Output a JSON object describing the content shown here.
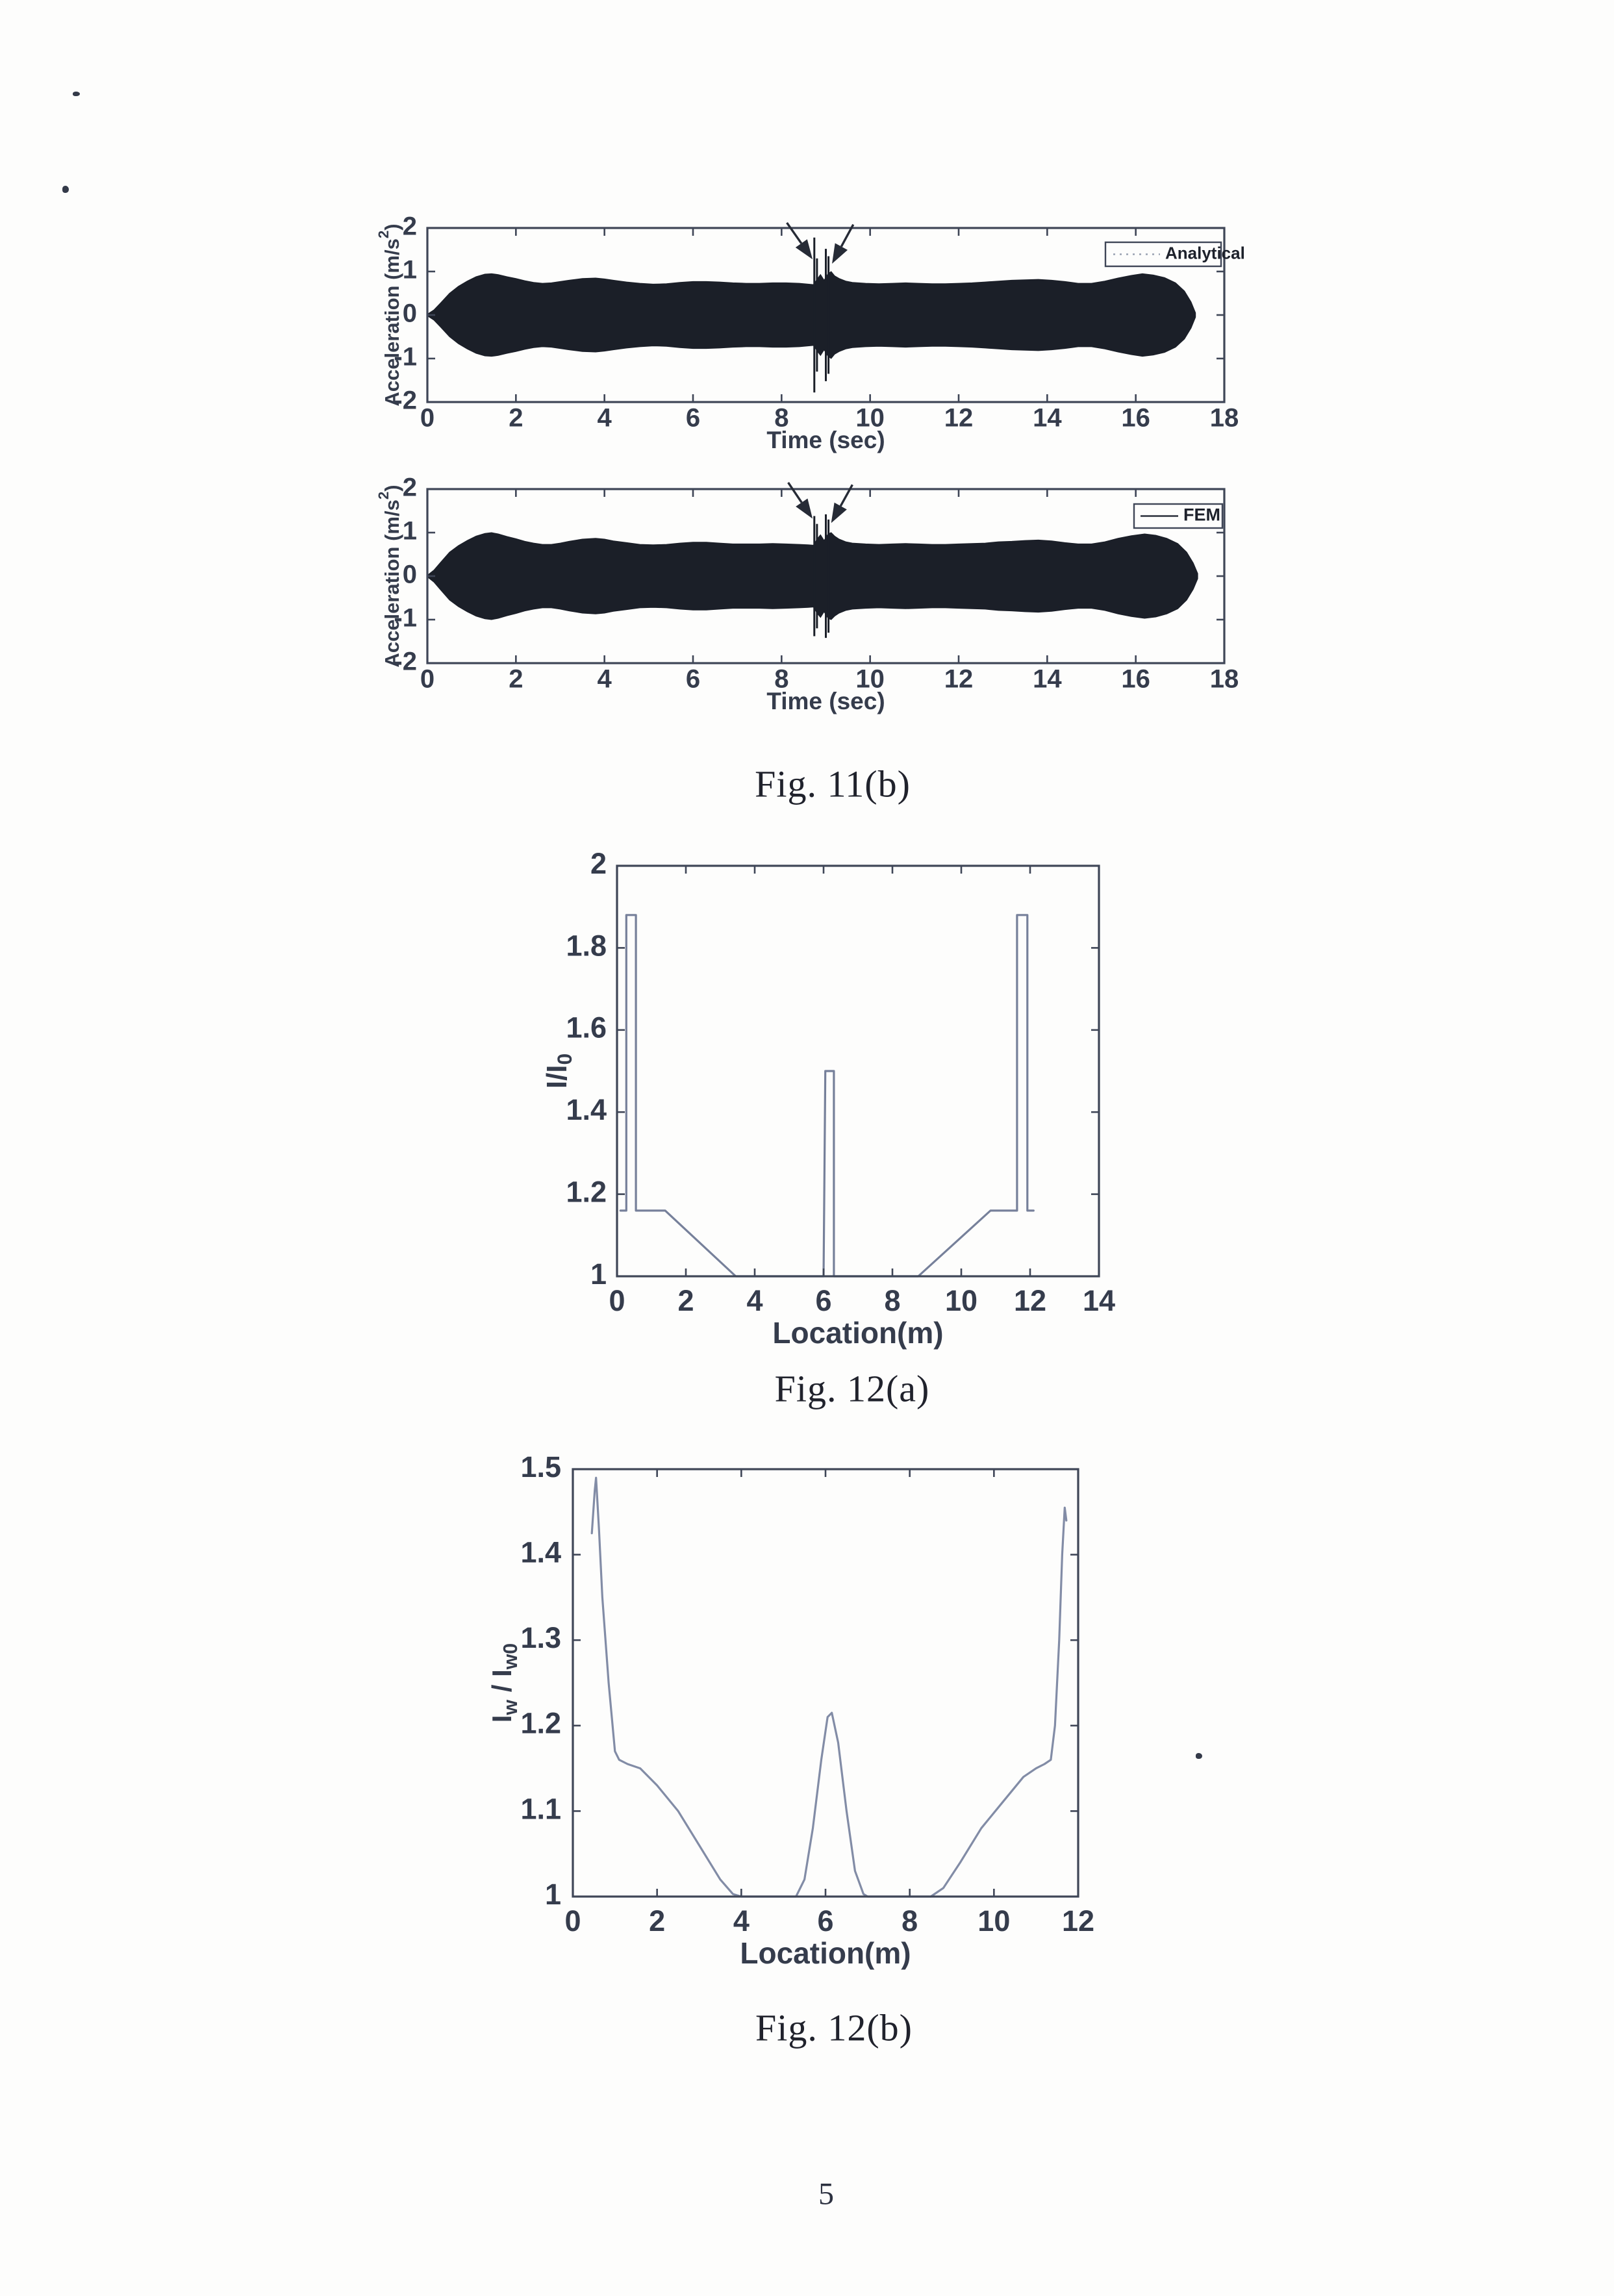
{
  "page": {
    "number": "5"
  },
  "captions": {
    "fig11b": "Fig. 11(b)",
    "fig12a": "Fig. 12(a)",
    "fig12b": "Fig. 12(b)"
  },
  "colors": {
    "axis": "#3f4657",
    "tick_text": "#353c4c",
    "waveform": "#1b1f28",
    "curve_12a": "#76809a",
    "curve_12b": "#828ca6",
    "caption_text": "#20222c",
    "legend_text": "#1d212b"
  },
  "chart_data": [
    {
      "id": "accel-analytical",
      "type": "area",
      "title": "",
      "xlabel": "Time (sec)",
      "ylabel": "Acceleration (m/s^2)",
      "ylabel_parts": [
        {
          "t": "Acceleration (m/s"
        },
        {
          "t": "2",
          "sup": true
        },
        {
          "t": ")"
        }
      ],
      "xlim": [
        0,
        18
      ],
      "ylim": [
        -2,
        2
      ],
      "xticks": [
        0,
        2,
        4,
        6,
        8,
        10,
        12,
        14,
        16,
        18
      ],
      "xtick_labels": [
        "0",
        "2",
        "4",
        "6",
        "8",
        "10",
        "12",
        "14",
        "16",
        "18"
      ],
      "yticks": [
        2,
        1,
        0,
        -1,
        -2
      ],
      "ytick_labels": [
        "2",
        "1",
        "0",
        "-1",
        "-2"
      ],
      "legend": {
        "label": "Analytical",
        "line_style": "dotted",
        "position": "top-right"
      },
      "envelope": [
        [
          0,
          0.02
        ],
        [
          0.15,
          0.12
        ],
        [
          0.3,
          0.28
        ],
        [
          0.5,
          0.5
        ],
        [
          0.7,
          0.66
        ],
        [
          0.9,
          0.78
        ],
        [
          1.1,
          0.88
        ],
        [
          1.3,
          0.94
        ],
        [
          1.45,
          0.95
        ],
        [
          1.6,
          0.93
        ],
        [
          1.8,
          0.88
        ],
        [
          2.0,
          0.84
        ],
        [
          2.2,
          0.79
        ],
        [
          2.4,
          0.75
        ],
        [
          2.6,
          0.73
        ],
        [
          2.8,
          0.74
        ],
        [
          3.0,
          0.77
        ],
        [
          3.2,
          0.8
        ],
        [
          3.5,
          0.84
        ],
        [
          3.8,
          0.85
        ],
        [
          4.0,
          0.83
        ],
        [
          4.2,
          0.8
        ],
        [
          4.5,
          0.76
        ],
        [
          4.8,
          0.73
        ],
        [
          5.1,
          0.71
        ],
        [
          5.4,
          0.72
        ],
        [
          5.7,
          0.75
        ],
        [
          6.0,
          0.77
        ],
        [
          6.3,
          0.77
        ],
        [
          6.6,
          0.76
        ],
        [
          6.9,
          0.74
        ],
        [
          7.2,
          0.73
        ],
        [
          7.5,
          0.73
        ],
        [
          7.8,
          0.74
        ],
        [
          8.1,
          0.74
        ],
        [
          8.4,
          0.73
        ],
        [
          8.6,
          0.71
        ],
        [
          8.72,
          0.7
        ],
        [
          8.8,
          0.82
        ],
        [
          8.88,
          0.93
        ],
        [
          8.96,
          0.8
        ],
        [
          9.05,
          0.95
        ],
        [
          9.12,
          1.0
        ],
        [
          9.2,
          0.9
        ],
        [
          9.3,
          0.84
        ],
        [
          9.45,
          0.78
        ],
        [
          9.6,
          0.75
        ],
        [
          9.9,
          0.73
        ],
        [
          10.2,
          0.72
        ],
        [
          10.5,
          0.73
        ],
        [
          10.8,
          0.74
        ],
        [
          11.1,
          0.73
        ],
        [
          11.4,
          0.72
        ],
        [
          11.7,
          0.72
        ],
        [
          12.0,
          0.73
        ],
        [
          12.3,
          0.74
        ],
        [
          12.6,
          0.76
        ],
        [
          12.9,
          0.78
        ],
        [
          13.2,
          0.8
        ],
        [
          13.5,
          0.81
        ],
        [
          13.8,
          0.82
        ],
        [
          14.1,
          0.8
        ],
        [
          14.4,
          0.77
        ],
        [
          14.7,
          0.73
        ],
        [
          15.0,
          0.73
        ],
        [
          15.3,
          0.78
        ],
        [
          15.6,
          0.85
        ],
        [
          15.9,
          0.91
        ],
        [
          16.15,
          0.95
        ],
        [
          16.4,
          0.92
        ],
        [
          16.65,
          0.86
        ],
        [
          16.9,
          0.74
        ],
        [
          17.1,
          0.55
        ],
        [
          17.25,
          0.3
        ],
        [
          17.35,
          0.05
        ]
      ],
      "spikes": [
        [
          8.74,
          1.78
        ],
        [
          8.8,
          1.3
        ],
        [
          9.0,
          1.52
        ],
        [
          9.06,
          1.35
        ]
      ],
      "arrows": [
        {
          "from": [
            8.12,
            2.12
          ],
          "to": [
            8.7,
            1.28
          ]
        },
        {
          "from": [
            9.62,
            2.08
          ],
          "to": [
            9.14,
            1.18
          ]
        }
      ]
    },
    {
      "id": "accel-fem",
      "type": "area",
      "title": "",
      "xlabel": "Time (sec)",
      "ylabel": "Acceleration (m/s^2)",
      "ylabel_parts": [
        {
          "t": "Acceleration (m/s"
        },
        {
          "t": "2",
          "sup": true
        },
        {
          "t": ")"
        }
      ],
      "xlim": [
        0,
        18
      ],
      "ylim": [
        -2,
        2
      ],
      "xticks": [
        0,
        2,
        4,
        6,
        8,
        10,
        12,
        14,
        16,
        18
      ],
      "xtick_labels": [
        "0",
        "2",
        "4",
        "6",
        "8",
        "10",
        "12",
        "14",
        "16",
        "18"
      ],
      "yticks": [
        2,
        1,
        0,
        -1,
        -2
      ],
      "ytick_labels": [
        "2",
        "1",
        "0",
        "-1",
        "-2"
      ],
      "legend": {
        "label": "FEM",
        "line_style": "solid",
        "position": "top-right"
      },
      "envelope": [
        [
          0,
          0.02
        ],
        [
          0.15,
          0.14
        ],
        [
          0.3,
          0.32
        ],
        [
          0.5,
          0.55
        ],
        [
          0.7,
          0.7
        ],
        [
          0.9,
          0.82
        ],
        [
          1.1,
          0.92
        ],
        [
          1.3,
          0.98
        ],
        [
          1.45,
          1.0
        ],
        [
          1.6,
          0.97
        ],
        [
          1.8,
          0.91
        ],
        [
          2.0,
          0.86
        ],
        [
          2.2,
          0.8
        ],
        [
          2.4,
          0.76
        ],
        [
          2.6,
          0.73
        ],
        [
          2.8,
          0.73
        ],
        [
          3.0,
          0.76
        ],
        [
          3.2,
          0.8
        ],
        [
          3.5,
          0.85
        ],
        [
          3.8,
          0.87
        ],
        [
          4.0,
          0.85
        ],
        [
          4.2,
          0.81
        ],
        [
          4.5,
          0.77
        ],
        [
          4.8,
          0.73
        ],
        [
          5.1,
          0.72
        ],
        [
          5.4,
          0.73
        ],
        [
          5.7,
          0.76
        ],
        [
          6.0,
          0.78
        ],
        [
          6.3,
          0.78
        ],
        [
          6.6,
          0.76
        ],
        [
          6.9,
          0.74
        ],
        [
          7.2,
          0.74
        ],
        [
          7.5,
          0.74
        ],
        [
          7.8,
          0.75
        ],
        [
          8.1,
          0.74
        ],
        [
          8.4,
          0.73
        ],
        [
          8.6,
          0.72
        ],
        [
          8.72,
          0.71
        ],
        [
          8.8,
          0.85
        ],
        [
          8.88,
          0.95
        ],
        [
          8.96,
          0.82
        ],
        [
          9.05,
          0.97
        ],
        [
          9.12,
          1.0
        ],
        [
          9.2,
          0.92
        ],
        [
          9.3,
          0.85
        ],
        [
          9.45,
          0.79
        ],
        [
          9.6,
          0.76
        ],
        [
          9.9,
          0.74
        ],
        [
          10.2,
          0.73
        ],
        [
          10.5,
          0.74
        ],
        [
          10.8,
          0.75
        ],
        [
          11.1,
          0.74
        ],
        [
          11.4,
          0.73
        ],
        [
          11.7,
          0.73
        ],
        [
          12.0,
          0.74
        ],
        [
          12.3,
          0.75
        ],
        [
          12.6,
          0.76
        ],
        [
          12.9,
          0.79
        ],
        [
          13.2,
          0.8
        ],
        [
          13.5,
          0.82
        ],
        [
          13.8,
          0.83
        ],
        [
          14.1,
          0.81
        ],
        [
          14.4,
          0.77
        ],
        [
          14.7,
          0.74
        ],
        [
          15.0,
          0.74
        ],
        [
          15.3,
          0.79
        ],
        [
          15.6,
          0.87
        ],
        [
          15.9,
          0.93
        ],
        [
          16.2,
          0.97
        ],
        [
          16.45,
          0.94
        ],
        [
          16.7,
          0.87
        ],
        [
          16.95,
          0.75
        ],
        [
          17.15,
          0.55
        ],
        [
          17.3,
          0.3
        ],
        [
          17.4,
          0.06
        ]
      ],
      "spikes": [
        [
          8.74,
          1.38
        ],
        [
          8.8,
          1.2
        ],
        [
          9.0,
          1.42
        ],
        [
          9.06,
          1.3
        ]
      ],
      "arrows": [
        {
          "from": [
            8.15,
            2.15
          ],
          "to": [
            8.7,
            1.32
          ]
        },
        {
          "from": [
            9.6,
            2.1
          ],
          "to": [
            9.12,
            1.22
          ]
        }
      ]
    },
    {
      "id": "fig12a",
      "type": "line",
      "title": "",
      "xlabel": "Location(m)",
      "ylabel": "I/I_0",
      "ylabel_parts": [
        {
          "t": "I/I"
        },
        {
          "t": "0",
          "sub": true
        }
      ],
      "xlim": [
        0,
        14
      ],
      "ylim": [
        1,
        2
      ],
      "xticks": [
        0,
        2,
        4,
        6,
        8,
        10,
        12,
        14
      ],
      "xtick_labels": [
        "0",
        "2",
        "4",
        "6",
        "8",
        "10",
        "12",
        "14"
      ],
      "yticks": [
        2,
        1.8,
        1.6,
        1.4,
        1.2,
        1
      ],
      "ytick_labels": [
        "2",
        "1.8",
        "1.6",
        "1.4",
        "1.2",
        "1"
      ],
      "points": [
        [
          0.1,
          1.16
        ],
        [
          0.27,
          1.16
        ],
        [
          0.27,
          1.88
        ],
        [
          0.55,
          1.88
        ],
        [
          0.55,
          1.16
        ],
        [
          1.4,
          1.16
        ],
        [
          3.45,
          1.0
        ],
        [
          6.0,
          1.0
        ],
        [
          6.05,
          1.5
        ],
        [
          6.3,
          1.5
        ],
        [
          6.3,
          1.0
        ],
        [
          8.75,
          1.0
        ],
        [
          10.85,
          1.16
        ],
        [
          11.62,
          1.16
        ],
        [
          11.62,
          1.88
        ],
        [
          11.92,
          1.88
        ],
        [
          11.92,
          1.16
        ],
        [
          12.1,
          1.16
        ]
      ]
    },
    {
      "id": "fig12b",
      "type": "line",
      "title": "",
      "xlabel": "Location(m)",
      "ylabel": "I_w / I_w0",
      "ylabel_parts": [
        {
          "t": "I"
        },
        {
          "t": "w",
          "sub": true
        },
        {
          "t": " / I"
        },
        {
          "t": "w0",
          "sub": true
        }
      ],
      "xlim": [
        0,
        12
      ],
      "ylim": [
        1,
        1.5
      ],
      "xticks": [
        0,
        2,
        4,
        6,
        8,
        10,
        12
      ],
      "xtick_labels": [
        "0",
        "2",
        "4",
        "6",
        "8",
        "10",
        "12"
      ],
      "yticks": [
        1.5,
        1.4,
        1.3,
        1.2,
        1.1,
        1
      ],
      "ytick_labels": [
        "1.5",
        "1.4",
        "1.3",
        "1.2",
        "1.1",
        "1"
      ],
      "points": [
        [
          0.45,
          1.425
        ],
        [
          0.52,
          1.475
        ],
        [
          0.55,
          1.49
        ],
        [
          0.62,
          1.43
        ],
        [
          0.7,
          1.35
        ],
        [
          0.85,
          1.25
        ],
        [
          1.0,
          1.17
        ],
        [
          1.1,
          1.16
        ],
        [
          1.3,
          1.155
        ],
        [
          1.6,
          1.15
        ],
        [
          2.0,
          1.13
        ],
        [
          2.5,
          1.1
        ],
        [
          3.0,
          1.06
        ],
        [
          3.5,
          1.02
        ],
        [
          3.8,
          1.003
        ],
        [
          4.0,
          1.0
        ],
        [
          5.3,
          1.0
        ],
        [
          5.5,
          1.02
        ],
        [
          5.7,
          1.08
        ],
        [
          5.9,
          1.16
        ],
        [
          6.05,
          1.21
        ],
        [
          6.15,
          1.215
        ],
        [
          6.3,
          1.18
        ],
        [
          6.5,
          1.1
        ],
        [
          6.7,
          1.03
        ],
        [
          6.9,
          1.003
        ],
        [
          7.0,
          1.0
        ],
        [
          8.5,
          1.0
        ],
        [
          8.8,
          1.01
        ],
        [
          9.2,
          1.04
        ],
        [
          9.7,
          1.08
        ],
        [
          10.2,
          1.11
        ],
        [
          10.7,
          1.14
        ],
        [
          11.0,
          1.15
        ],
        [
          11.2,
          1.155
        ],
        [
          11.35,
          1.16
        ],
        [
          11.45,
          1.2
        ],
        [
          11.55,
          1.3
        ],
        [
          11.62,
          1.4
        ],
        [
          11.68,
          1.455
        ],
        [
          11.72,
          1.44
        ]
      ]
    }
  ]
}
